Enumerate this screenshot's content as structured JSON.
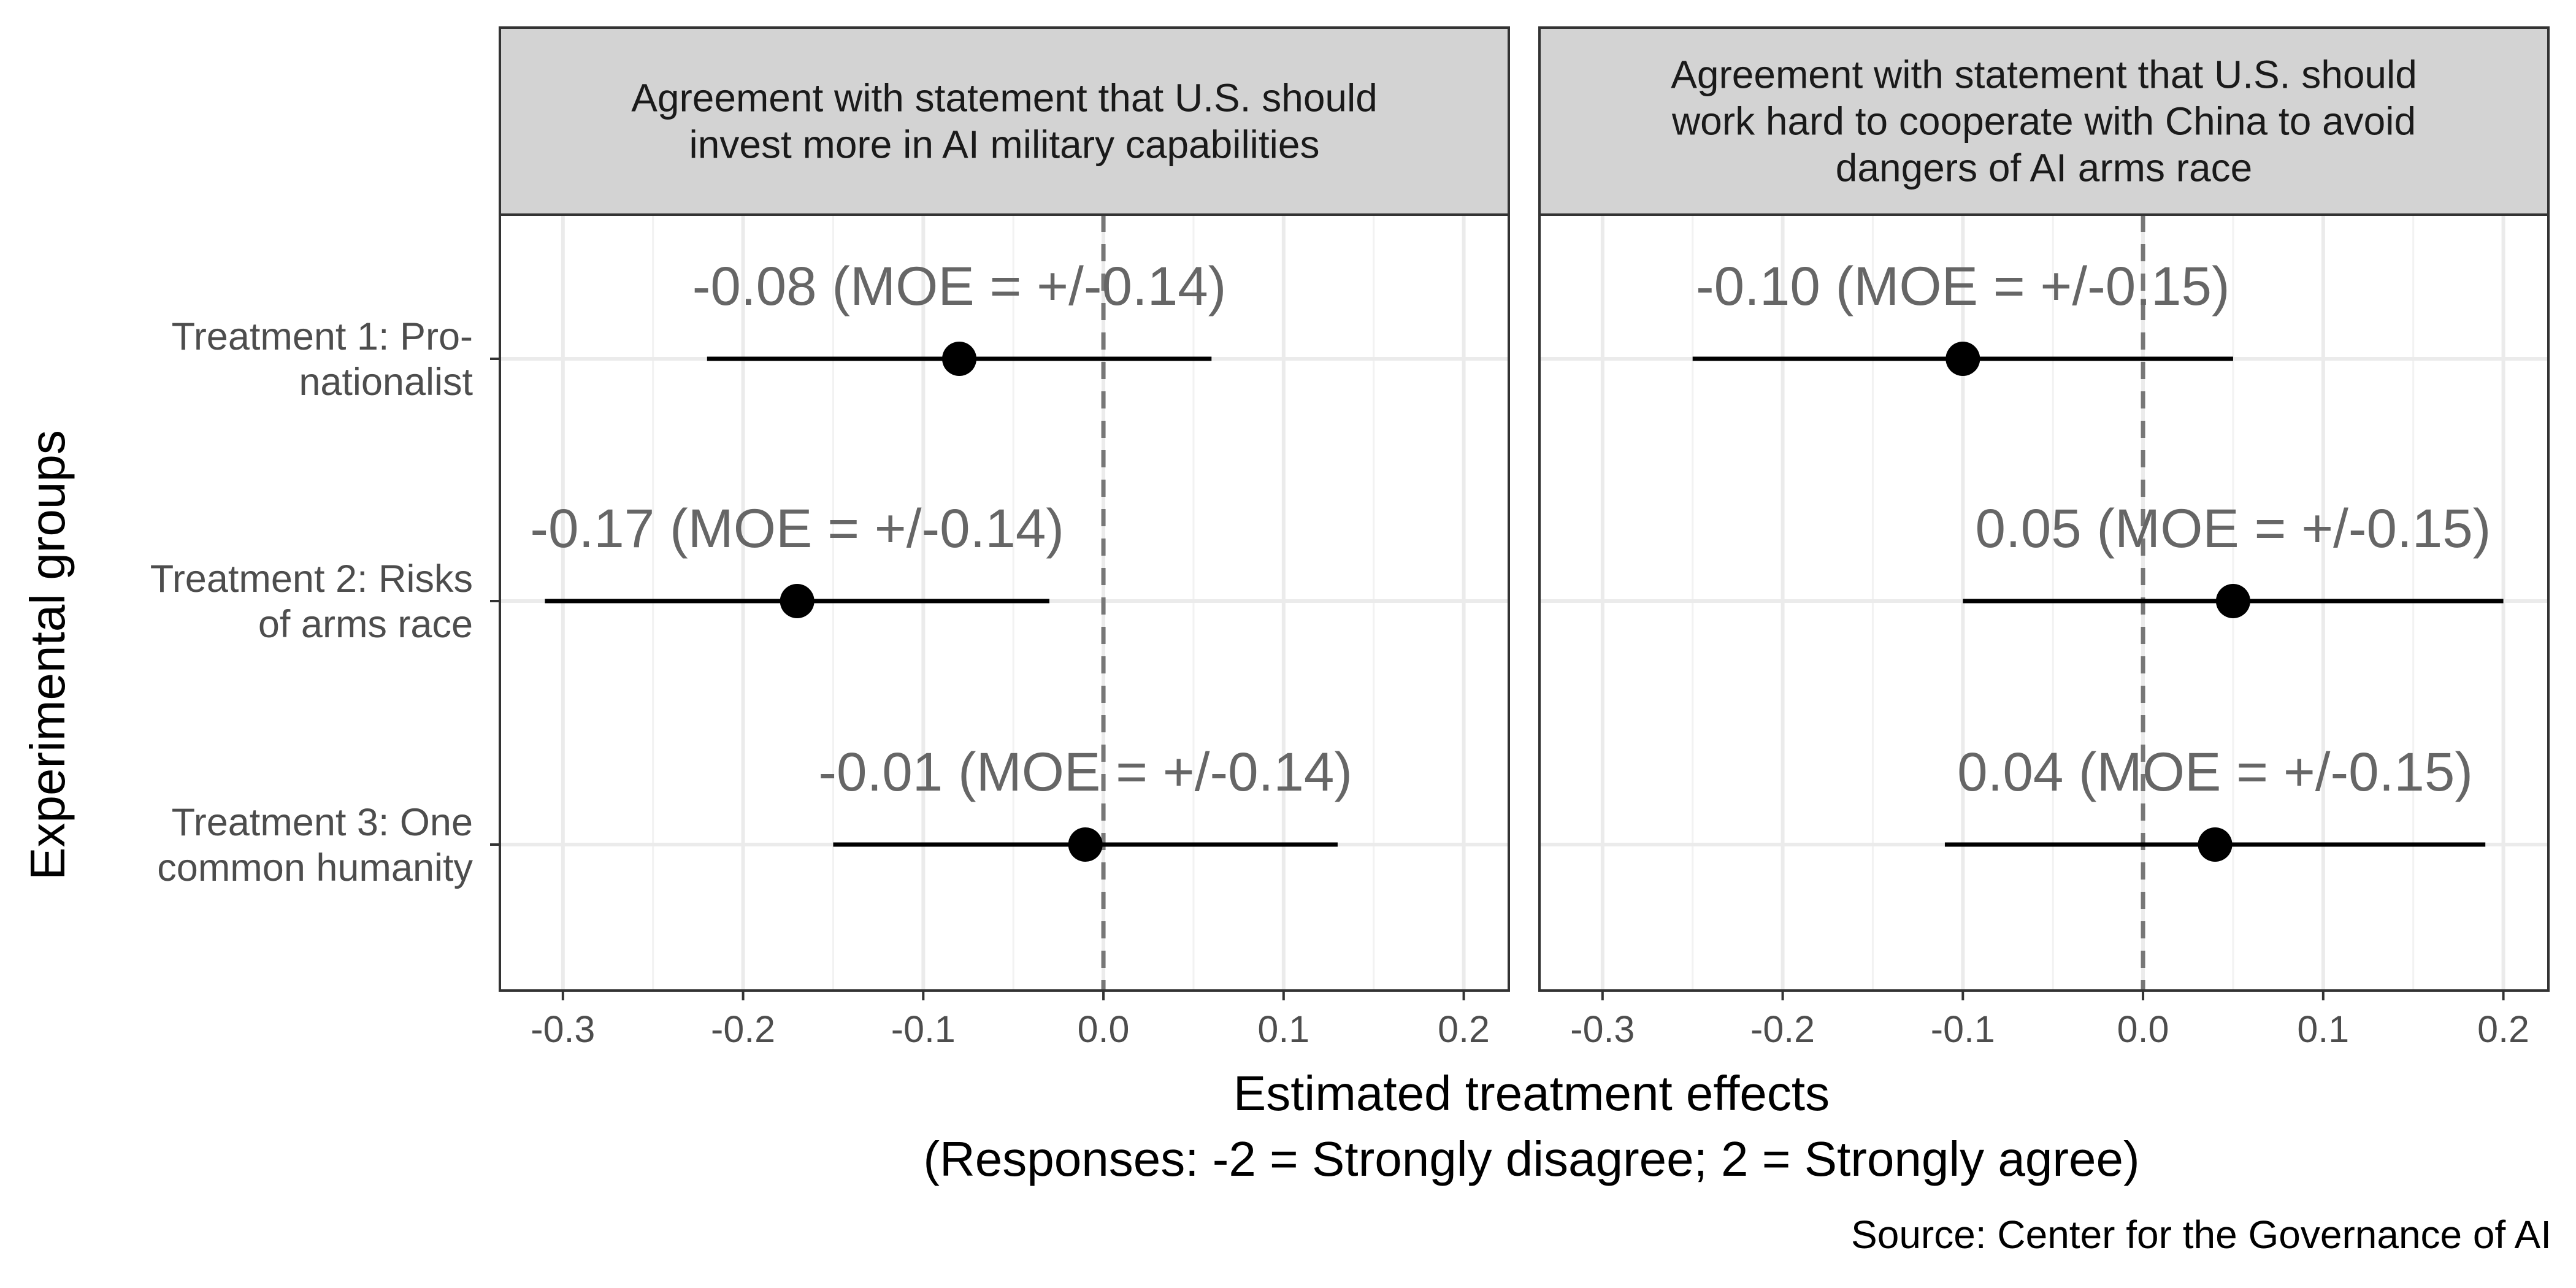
{
  "colors": {
    "panel_border": "#333333",
    "strip_fill": "#d3d3d3",
    "grid_major": "#ebebeb",
    "grid_minor": "#f2f2f2",
    "point": "#000000",
    "ref_line": "#777777",
    "label": "#666666"
  },
  "chart_data": {
    "type": "scatter",
    "subtype": "point-range (coefficient plot with error bars), faceted into 2 panels",
    "xlabel": "Estimated treatment effects",
    "xlabel_line2": "(Responses: -2 = Strongly disagree; 2 = Strongly agree)",
    "ylabel": "Experimental groups",
    "caption": "Source: Center for the Governance of AI",
    "xlim": [
      -0.335,
      0.225
    ],
    "x_ticks": [
      -0.3,
      -0.2,
      -0.1,
      0.0,
      0.1,
      0.2
    ],
    "x_tick_labels": [
      "-0.3",
      "-0.2",
      "-0.1",
      "0.0",
      "0.1",
      "0.2"
    ],
    "reference_line": {
      "x": 0,
      "style": "dashed"
    },
    "grid": true,
    "categories": [
      [
        "Treatment 1: Pro-",
        "nationalist"
      ],
      [
        "Treatment 2: Risks",
        "of arms race"
      ],
      [
        "Treatment 3: One",
        "common humanity"
      ]
    ],
    "panels": [
      {
        "title_lines": [
          "Agreement with statement that U.S. should",
          "invest more in AI military capabilities"
        ],
        "points": [
          {
            "estimate": -0.08,
            "moe": 0.14,
            "label": "-0.08 (MOE = +/-0.14)"
          },
          {
            "estimate": -0.17,
            "moe": 0.14,
            "label": "-0.17 (MOE = +/-0.14)"
          },
          {
            "estimate": -0.01,
            "moe": 0.14,
            "label": "-0.01 (MOE = +/-0.14)"
          }
        ]
      },
      {
        "title_lines": [
          "Agreement with statement that U.S. should",
          "work hard to cooperate with China to avoid",
          "dangers of AI arms race"
        ],
        "points": [
          {
            "estimate": -0.1,
            "moe": 0.15,
            "label": "-0.10 (MOE = +/-0.15)"
          },
          {
            "estimate": 0.05,
            "moe": 0.15,
            "label": "0.05 (MOE = +/-0.15)"
          },
          {
            "estimate": 0.04,
            "moe": 0.15,
            "label": "0.04 (MOE = +/-0.15)"
          }
        ]
      }
    ]
  }
}
